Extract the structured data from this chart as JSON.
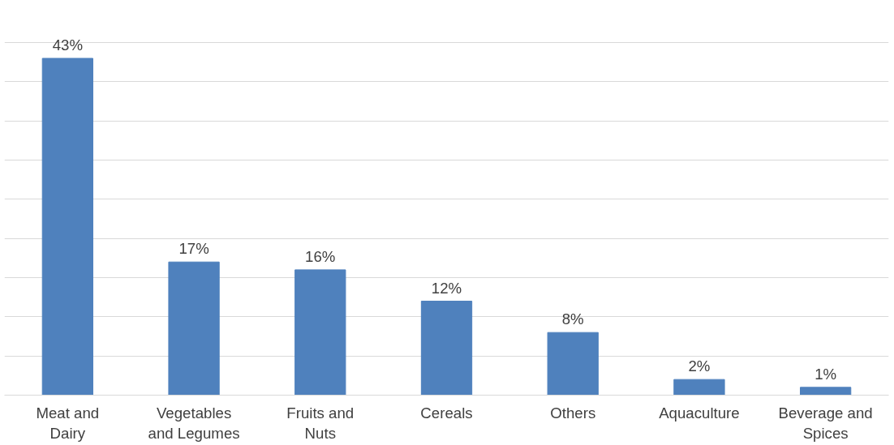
{
  "chart_data": {
    "type": "bar",
    "categories": [
      "Meat and Dairy",
      "Vegetables and Legumes",
      "Fruits and Nuts",
      "Cereals",
      "Others",
      "Aquaculture",
      "Beverage and Spices"
    ],
    "values": [
      43,
      17,
      16,
      12,
      8,
      2,
      1
    ],
    "value_labels": [
      "43%",
      "17%",
      "16%",
      "12%",
      "8%",
      "2%",
      "1%"
    ],
    "color": "#4f81bd",
    "grid": "y",
    "tick_labels": "x"
  }
}
